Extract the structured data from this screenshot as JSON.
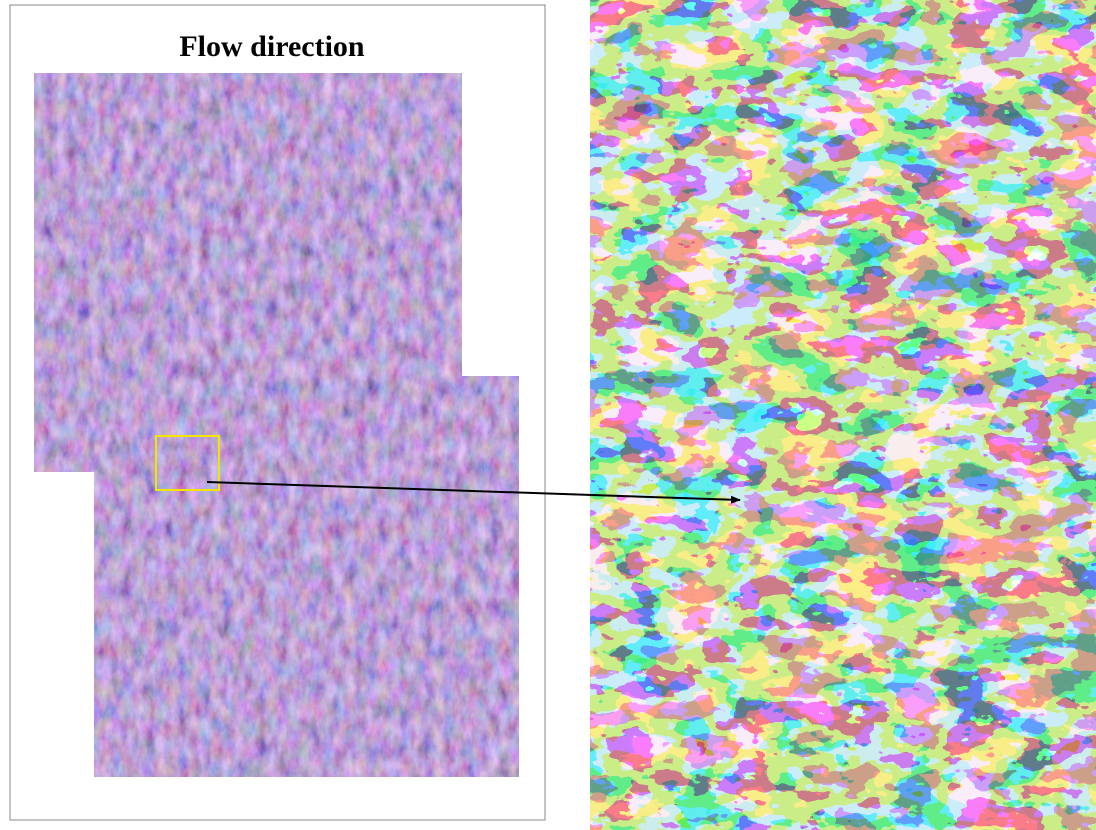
{
  "title": "Flow direction"
}
